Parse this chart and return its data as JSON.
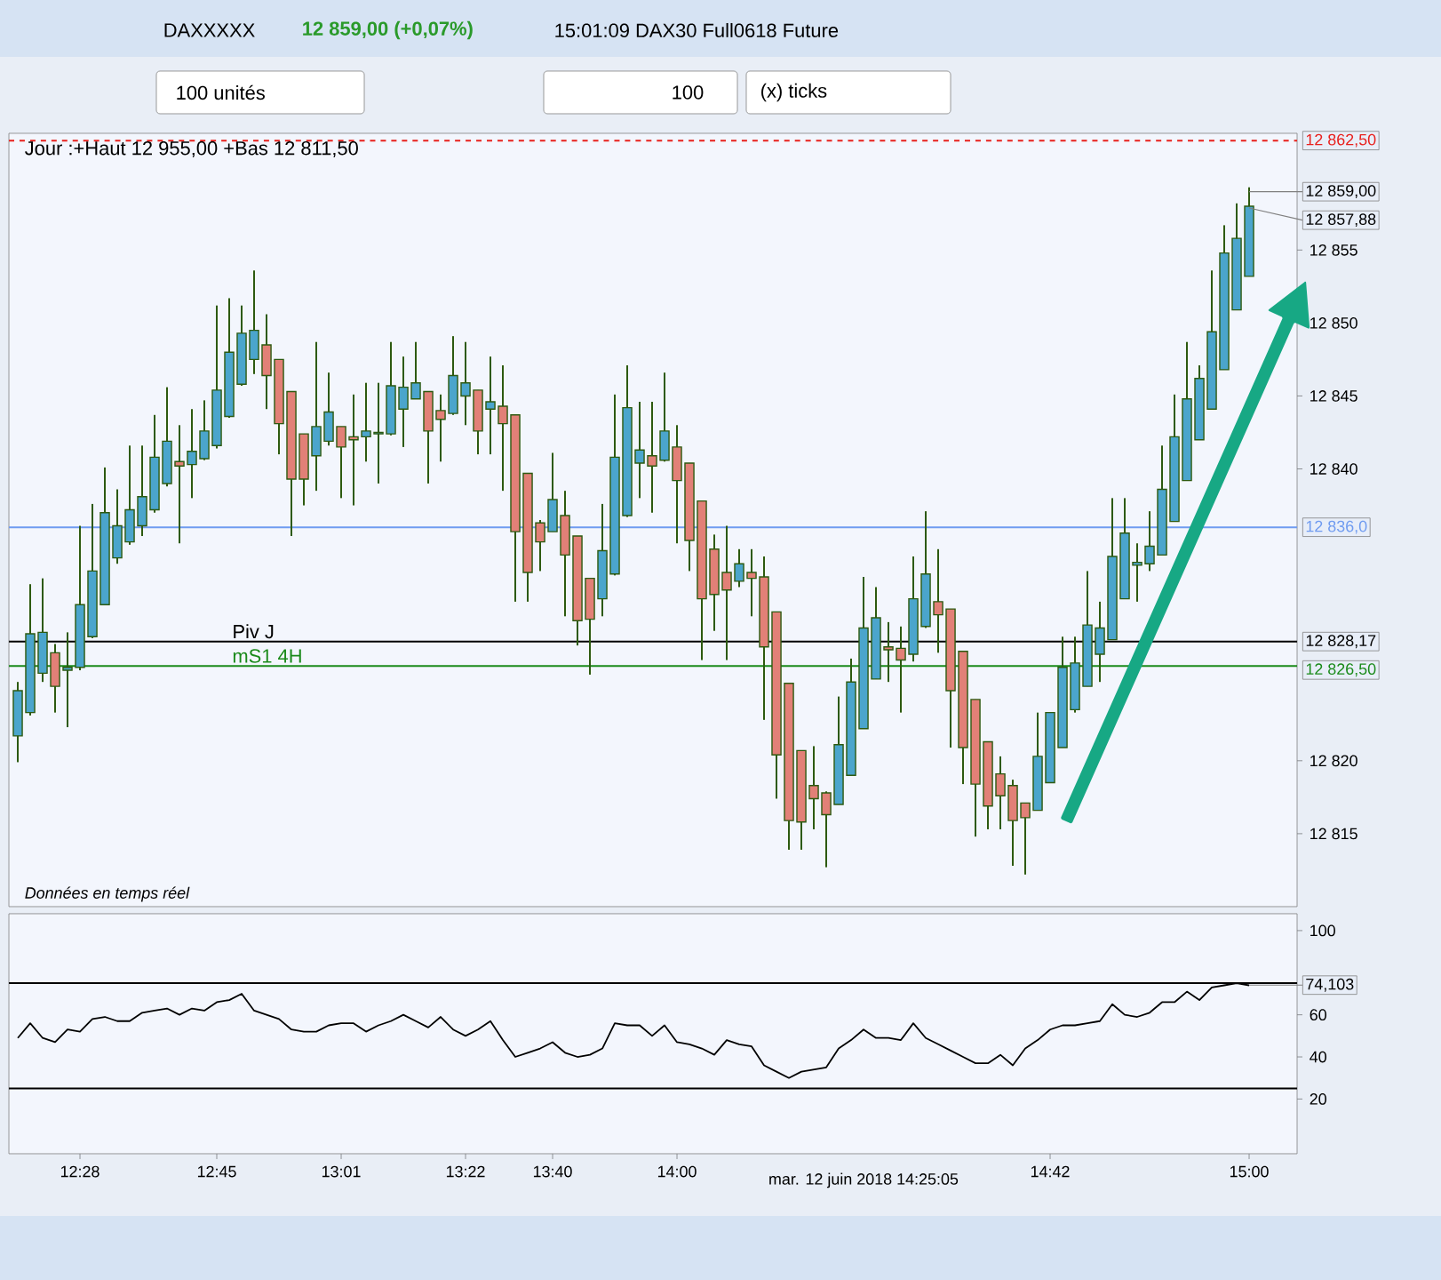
{
  "chart_data": [
    {
      "type": "candlestick",
      "title": "DAXXXXX",
      "subtitle": "12 859,00 (+0,07%)",
      "categories": [
        null,
        null,
        null,
        null,
        null,
        "12:28",
        null,
        null,
        null,
        null,
        null,
        null,
        null,
        null,
        null,
        null,
        "12:45",
        null,
        null,
        null,
        null,
        null,
        null,
        null,
        null,
        null,
        "13:01",
        null,
        null,
        null,
        null,
        null,
        null,
        null,
        null,
        null,
        "13:22",
        null,
        null,
        null,
        null,
        null,
        null,
        "13:40",
        null,
        null,
        null,
        null,
        null,
        null,
        null,
        null,
        null,
        "14:00",
        null,
        null,
        null,
        null,
        null,
        null,
        null,
        null,
        null,
        null,
        null,
        null,
        null,
        null,
        null,
        null,
        null,
        null,
        null,
        null,
        null,
        null,
        null,
        null,
        null,
        null,
        null,
        null,
        null,
        "14:42",
        null,
        null,
        null,
        null,
        null,
        null,
        null,
        null,
        null,
        null,
        null,
        null,
        null,
        null,
        null,
        "15:00"
      ],
      "ohlc": [
        [
          12821.7,
          12825.4,
          12819.9,
          12824.8
        ],
        [
          12823.3,
          12832.1,
          12823.1,
          12828.7
        ],
        [
          12826.0,
          12832.5,
          12825.4,
          12828.8
        ],
        [
          12827.4,
          12828.0,
          12823.3,
          12825.1
        ],
        [
          12826.2,
          12828.8,
          12822.3,
          12826.4
        ],
        [
          12826.4,
          12836.1,
          12826.2,
          12830.7
        ],
        [
          12828.5,
          12837.6,
          12828.4,
          12833.0
        ],
        [
          12830.7,
          12840.1,
          12830.7,
          12837.0
        ],
        [
          12833.9,
          12838.6,
          12833.5,
          12836.1
        ],
        [
          12835.0,
          12841.6,
          12834.8,
          12837.2
        ],
        [
          12836.1,
          12841.6,
          12835.4,
          12838.1
        ],
        [
          12837.2,
          12843.7,
          12837.0,
          12840.8
        ],
        [
          12839.0,
          12845.6,
          12838.8,
          12841.9
        ],
        [
          12840.5,
          12843.0,
          12834.9,
          12840.2
        ],
        [
          12840.3,
          12844.1,
          12838.0,
          12841.2
        ],
        [
          12840.7,
          12844.7,
          12840.6,
          12842.6
        ],
        [
          12841.6,
          12851.2,
          12841.4,
          12845.4
        ],
        [
          12843.6,
          12851.7,
          12843.5,
          12848.0
        ],
        [
          12845.8,
          12851.2,
          12845.7,
          12849.3
        ],
        [
          12847.5,
          12853.6,
          12846.5,
          12849.5
        ],
        [
          12848.5,
          12850.6,
          12844.1,
          12846.4
        ],
        [
          12847.5,
          12847.5,
          12841.0,
          12843.1
        ],
        [
          12845.3,
          12845.3,
          12835.4,
          12839.3
        ],
        [
          12842.4,
          12842.4,
          12837.5,
          12839.3
        ],
        [
          12840.9,
          12848.7,
          12838.5,
          12842.9
        ],
        [
          12841.9,
          12846.6,
          12841.6,
          12843.9
        ],
        [
          12842.9,
          12842.9,
          12838.0,
          12841.5
        ],
        [
          12842.2,
          12845.1,
          12837.5,
          12842.0
        ],
        [
          12842.2,
          12845.9,
          12840.5,
          12842.6
        ],
        [
          12842.4,
          12845.9,
          12839.0,
          12842.5
        ],
        [
          12842.4,
          12848.7,
          12842.3,
          12845.7
        ],
        [
          12844.1,
          12847.7,
          12841.5,
          12845.6
        ],
        [
          12844.8,
          12848.7,
          12844.8,
          12845.9
        ],
        [
          12845.3,
          12845.3,
          12839.0,
          12842.6
        ],
        [
          12844.0,
          12845.1,
          12840.5,
          12843.4
        ],
        [
          12843.8,
          12849.1,
          12843.7,
          12846.4
        ],
        [
          12845.0,
          12848.7,
          12843.0,
          12845.9
        ],
        [
          12845.4,
          12845.4,
          12841.0,
          12842.6
        ],
        [
          12844.1,
          12847.7,
          12841.0,
          12844.6
        ],
        [
          12844.3,
          12847.1,
          12838.5,
          12843.1
        ],
        [
          12843.7,
          12843.7,
          12830.9,
          12835.7
        ],
        [
          12839.7,
          12839.7,
          12830.9,
          12832.9
        ],
        [
          12836.3,
          12836.5,
          12833.0,
          12835.0
        ],
        [
          12835.7,
          12841.1,
          12835.7,
          12837.9
        ],
        [
          12836.8,
          12838.5,
          12829.9,
          12834.1
        ],
        [
          12835.4,
          12835.4,
          12827.9,
          12829.6
        ],
        [
          12832.5,
          12832.5,
          12825.9,
          12829.7
        ],
        [
          12831.1,
          12837.6,
          12829.9,
          12834.4
        ],
        [
          12832.8,
          12845.1,
          12832.7,
          12840.8
        ],
        [
          12836.8,
          12847.1,
          12836.7,
          12844.2
        ],
        [
          12840.4,
          12844.6,
          12838.0,
          12841.3
        ],
        [
          12840.9,
          12844.6,
          12837.0,
          12840.2
        ],
        [
          12840.6,
          12846.6,
          12840.5,
          12842.6
        ],
        [
          12841.5,
          12843.0,
          12834.9,
          12839.2
        ],
        [
          12840.4,
          12840.4,
          12833.0,
          12835.1
        ],
        [
          12837.8,
          12837.8,
          12826.9,
          12831.1
        ],
        [
          12834.5,
          12835.5,
          12828.9,
          12831.4
        ],
        [
          12832.9,
          12836.1,
          12826.9,
          12831.7
        ],
        [
          12832.3,
          12834.5,
          12831.9,
          12833.5
        ],
        [
          12832.9,
          12834.5,
          12829.9,
          12832.5
        ],
        [
          12832.6,
          12834.0,
          12822.8,
          12827.8
        ],
        [
          12830.2,
          12830.2,
          12817.4,
          12820.4
        ],
        [
          12825.3,
          12825.3,
          12813.9,
          12815.9
        ],
        [
          12820.7,
          12820.7,
          12813.9,
          12815.8
        ],
        [
          12818.3,
          12821.0,
          12815.3,
          12817.4
        ],
        [
          12817.8,
          12817.9,
          12812.7,
          12816.3
        ],
        [
          12817.0,
          12824.4,
          12817.0,
          12821.1
        ],
        [
          12819.0,
          12827.0,
          12819.0,
          12825.4
        ],
        [
          12822.2,
          12832.6,
          12822.2,
          12829.1
        ],
        [
          12825.6,
          12831.9,
          12825.6,
          12829.8
        ],
        [
          12827.8,
          12829.5,
          12825.4,
          12827.6
        ],
        [
          12827.7,
          12829.2,
          12823.3,
          12826.9
        ],
        [
          12827.3,
          12834.0,
          12826.8,
          12831.1
        ],
        [
          12829.2,
          12837.1,
          12829.1,
          12832.8
        ],
        [
          12830.9,
          12834.5,
          12827.4,
          12830.0
        ],
        [
          12830.4,
          12830.4,
          12820.9,
          12824.8
        ],
        [
          12827.5,
          12827.5,
          12818.4,
          12820.9
        ],
        [
          12824.2,
          12824.2,
          12814.8,
          12818.4
        ],
        [
          12821.3,
          12821.3,
          12815.3,
          12816.9
        ],
        [
          12819.1,
          12820.3,
          12815.3,
          12817.6
        ],
        [
          12818.3,
          12818.7,
          12812.8,
          12815.9
        ],
        [
          12817.1,
          12817.1,
          12812.2,
          12816.1
        ],
        [
          12816.6,
          12823.3,
          12816.6,
          12820.3
        ],
        [
          12818.5,
          12823.3,
          12818.5,
          12823.3
        ],
        [
          12820.9,
          12828.5,
          12820.9,
          12826.4
        ],
        [
          12823.5,
          12828.5,
          12823.3,
          12826.7
        ],
        [
          12825.1,
          12833.0,
          12825.1,
          12829.3
        ],
        [
          12827.3,
          12830.9,
          12825.4,
          12829.1
        ],
        [
          12828.3,
          12838.0,
          12828.3,
          12834.0
        ],
        [
          12831.1,
          12838.0,
          12831.1,
          12835.6
        ],
        [
          12833.4,
          12834.9,
          12830.9,
          12833.6
        ],
        [
          12833.5,
          12837.1,
          12833.0,
          12834.7
        ],
        [
          12834.1,
          12841.6,
          12834.1,
          12838.6
        ],
        [
          12836.4,
          12845.1,
          12836.4,
          12842.2
        ],
        [
          12839.2,
          12848.7,
          12839.2,
          12844.8
        ],
        [
          12842.0,
          12847.1,
          12842.0,
          12846.2
        ],
        [
          12844.1,
          12853.6,
          12844.1,
          12849.4
        ],
        [
          12846.8,
          12856.7,
          12846.8,
          12854.8
        ],
        [
          12850.9,
          12858.2,
          12850.9,
          12855.8
        ],
        [
          12853.2,
          12859.3,
          12853.2,
          12858.0
        ]
      ],
      "colors": [
        "#4ba5cc",
        "#4ba5cc",
        "#4ba5cc",
        "#e28077",
        "#4ba5cc",
        "#4ba5cc",
        "#4ba5cc",
        "#4ba5cc",
        "#4ba5cc",
        "#4ba5cc",
        "#4ba5cc",
        "#4ba5cc",
        "#4ba5cc",
        "#e28077",
        "#4ba5cc",
        "#4ba5cc",
        "#4ba5cc",
        "#4ba5cc",
        "#4ba5cc",
        "#4ba5cc",
        "#e28077",
        "#e28077",
        "#e28077",
        "#e28077",
        "#4ba5cc",
        "#4ba5cc",
        "#e28077",
        "#e28077",
        "#4ba5cc",
        "#4ba5cc",
        "#4ba5cc",
        "#4ba5cc",
        "#4ba5cc",
        "#e28077",
        "#e28077",
        "#4ba5cc",
        "#4ba5cc",
        "#e28077",
        "#4ba5cc",
        "#e28077",
        "#e28077",
        "#e28077",
        "#e28077",
        "#4ba5cc",
        "#e28077",
        "#e28077",
        "#e28077",
        "#4ba5cc",
        "#4ba5cc",
        "#4ba5cc",
        "#4ba5cc",
        "#e28077",
        "#4ba5cc",
        "#e28077",
        "#e28077",
        "#e28077",
        "#e28077",
        "#e28077",
        "#4ba5cc",
        "#e28077",
        "#e28077",
        "#e28077",
        "#e28077",
        "#e28077",
        "#e28077",
        "#e28077",
        "#4ba5cc",
        "#4ba5cc",
        "#4ba5cc",
        "#4ba5cc",
        "#e28077",
        "#e28077",
        "#4ba5cc",
        "#4ba5cc",
        "#e28077",
        "#e28077",
        "#e28077",
        "#e28077",
        "#e28077",
        "#e28077",
        "#e28077",
        "#e28077",
        "#4ba5cc",
        "#4ba5cc",
        "#4ba5cc",
        "#4ba5cc",
        "#4ba5cc",
        "#4ba5cc",
        "#4ba5cc",
        "#4ba5cc",
        "#4ba5cc",
        "#4ba5cc",
        "#4ba5cc",
        "#4ba5cc",
        "#4ba5cc",
        "#4ba5cc",
        "#4ba5cc",
        "#4ba5cc",
        "#4ba5cc",
        "#4ba5cc"
      ],
      "ylim": [
        12810,
        12863
      ],
      "yticks": [
        {
          "value": 12815,
          "label": "12 815"
        },
        {
          "value": 12820,
          "label": "12 820"
        },
        {
          "value": 12840,
          "label": "12 840"
        },
        {
          "value": 12845,
          "label": "12 845"
        },
        {
          "value": 12850,
          "label": "12 850"
        },
        {
          "value": 12855,
          "label": "12 855"
        }
      ],
      "tick_labels": "y",
      "ref_lines": [
        {
          "axis": "y",
          "value": 12862.5,
          "label": "12 862,50",
          "color": "#e8201c",
          "line_style": "dashed"
        },
        {
          "axis": "y",
          "value": 12836.0,
          "label": "12 836,0",
          "color": "#6f9bf0"
        },
        {
          "axis": "y",
          "value": 12828.17,
          "label": "12 828,17",
          "color": "#000000"
        },
        {
          "axis": "y",
          "value": 12826.5,
          "label": "12 826,50",
          "color": "#1a8a1a"
        }
      ],
      "annotations": [
        "15:01:09 DAX30 Full0618 Future",
        "100 unités",
        "100",
        "(x) ticks",
        "Jour :+Haut 12 955,00 +Bas 12 811,50",
        "Données en temps réel",
        {
          "text": "Piv J",
          "y": 12828.17
        },
        {
          "text": "mS1 4H",
          "y": 12826.5
        },
        {
          "text": "12 859,00",
          "x": "15:00",
          "y": 12859.0
        },
        {
          "text": "12 857,88",
          "x": "15:00",
          "y": 12857.88
        }
      ]
    },
    {
      "type": "line",
      "categories": [
        null,
        null,
        null,
        null,
        null,
        "12:28",
        null,
        null,
        null,
        null,
        null,
        null,
        null,
        null,
        null,
        null,
        "12:45",
        null,
        null,
        null,
        null,
        null,
        null,
        null,
        null,
        null,
        "13:01",
        null,
        null,
        null,
        null,
        null,
        null,
        null,
        null,
        null,
        "13:22",
        null,
        null,
        null,
        null,
        null,
        null,
        "13:40",
        null,
        null,
        null,
        null,
        null,
        null,
        null,
        null,
        null,
        "14:00",
        null,
        null,
        null,
        null,
        null,
        null,
        null,
        null,
        null,
        null,
        null,
        null,
        null,
        null,
        null,
        null,
        null,
        null,
        null,
        null,
        null,
        null,
        null,
        null,
        null,
        null,
        null,
        null,
        null,
        "14:42",
        null,
        null,
        null,
        null,
        null,
        null,
        null,
        null,
        null,
        null,
        null,
        null,
        null,
        null,
        null,
        "15:00"
      ],
      "values": [
        49,
        56,
        49,
        47,
        53,
        52,
        58,
        59,
        57,
        57,
        61,
        62,
        63,
        60,
        63,
        62,
        66,
        67,
        70,
        62,
        60,
        58,
        53,
        52,
        52,
        55,
        56,
        56,
        52,
        55,
        57,
        60,
        57,
        54,
        59,
        53,
        50,
        53,
        57,
        48,
        40,
        42,
        44,
        47,
        42,
        40,
        41,
        44,
        56,
        55,
        55,
        50,
        55,
        47,
        46,
        44,
        41,
        48,
        46,
        45,
        36,
        33,
        30,
        33,
        34,
        35,
        44,
        48,
        53,
        49,
        49,
        48,
        56,
        49,
        46,
        43,
        40,
        37,
        37,
        41,
        36,
        44,
        48,
        53,
        55,
        55,
        56,
        57,
        65,
        60,
        59,
        61,
        66,
        66,
        71,
        67,
        73,
        74,
        75,
        74
      ],
      "color": "#000000",
      "ylim": [
        -6,
        108
      ],
      "yticks": [
        20,
        40,
        60,
        100
      ],
      "ref_lines": [
        {
          "axis": "y",
          "value": 75,
          "color": "#000000"
        },
        {
          "axis": "y",
          "value": 25,
          "color": "#000000"
        }
      ],
      "annotations": [
        "mar. 12 juin 2018 14:25:05",
        {
          "text": "74,103",
          "x": "15:00",
          "y": 74.103
        }
      ]
    }
  ]
}
